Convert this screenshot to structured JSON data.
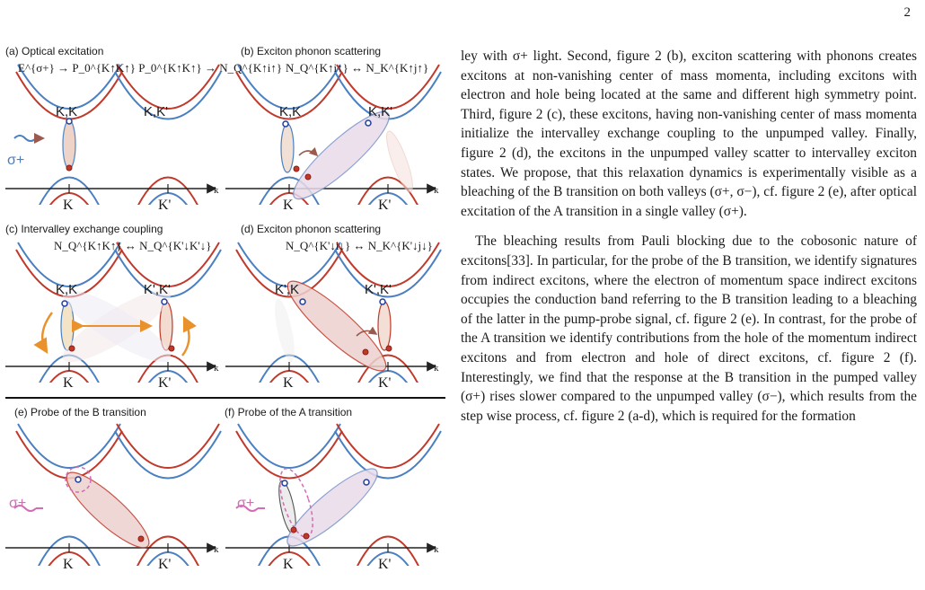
{
  "page_number": "2",
  "figure": {
    "panels": [
      {
        "id": "a",
        "label": "(a) Optical excitation",
        "formula": "E^{σ+} → P_0^{K↑K↑}   P_0^{K↑K↑} → N_Q^{K↑i↑}",
        "valleys": [
          "K,K",
          "K,K'"
        ]
      },
      {
        "id": "b",
        "label": "(b) Exciton phonon scattering",
        "formula": "N_Q^{K↑i↑} ↔ N_K^{K↑j↑}",
        "valleys": [
          "K,K",
          "K,K'"
        ]
      },
      {
        "id": "c",
        "label": "(c) Intervalley exchange coupling",
        "formula": "N_Q^{K↑K↑} ↔ N_Q^{K'↓K'↓}",
        "valleys": [
          "K,K",
          "K',K'"
        ]
      },
      {
        "id": "d",
        "label": "(d) Exciton phonon scattering",
        "formula": "N_Q^{K'↓i↓} ↔ N_K^{K'↓j↓}",
        "valleys": [
          "K',K",
          "K',K'"
        ]
      },
      {
        "id": "e",
        "label": "(e) Probe of the B transition",
        "formula": "",
        "valleys": []
      },
      {
        "id": "f",
        "label": "(f) Probe of the A transition",
        "formula": "",
        "valleys": []
      }
    ],
    "axis_k_label": "k",
    "valley_K": "K",
    "valley_Kp": "K'",
    "sigma_plus": "σ+",
    "colors": {
      "spin_up_blue": "#4a7fc1",
      "spin_down_red": "#c0392b",
      "exchange_orange": "#e8912d",
      "probe_pink": "#d46bb4"
    }
  },
  "text": {
    "paragraph1": "ley with σ+ light. Second, figure 2 (b), exciton scattering with phonons creates excitons at non-vanishing center of mass momenta, including excitons with electron and hole being located at the same and different high symmetry point. Third, figure 2 (c), these excitons, having non-vanishing center of mass momenta initialize the intervalley exchange coupling to the unpumped valley. Finally, figure 2 (d), the excitons in the unpumped valley scatter to intervalley exciton states. We propose, that this relaxation dynamics is experimentally visible as a bleaching of the B transition on both valleys (σ+, σ−), cf. figure 2 (e), after optical excitation of the A transition in a single valley (σ+).",
    "paragraph2": "The bleaching results from Pauli blocking due to the cobosonic nature of excitons[33]. In particular, for the probe of the B transition, we identify signatures from indirect excitons, where the electron of momentum space indirect excitons occupies the conduction band referring to the B transition leading to a bleaching of the latter in the pump-probe signal, cf. figure 2 (e). In contrast, for the probe of the A transition we identify contributions from the hole of the momentum indirect excitons and from electron and hole of direct excitons, cf. figure 2 (f). Interestingly, we find that the response at the B transition in the pumped valley (σ+) rises slower compared to the unpumped valley (σ−), which results from the step wise process, cf. figure 2 (a-d), which is required for the formation"
  }
}
